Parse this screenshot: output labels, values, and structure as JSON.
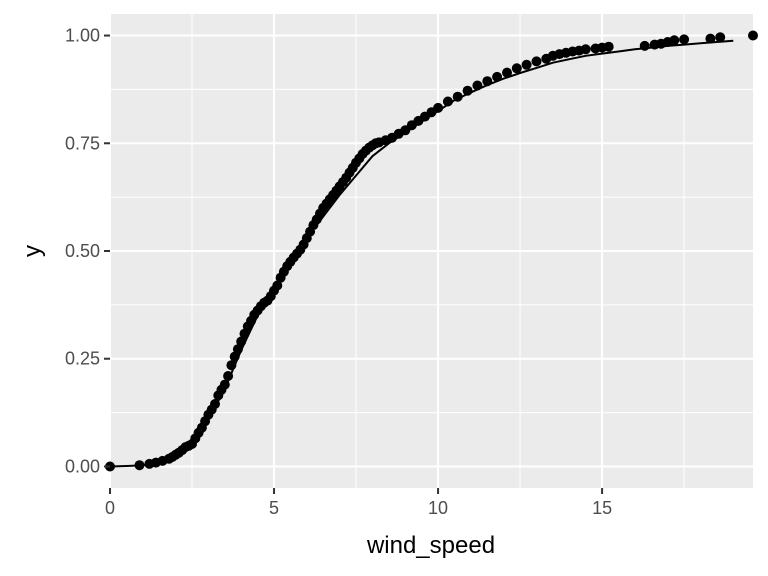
{
  "chart_data": {
    "type": "scatter",
    "xlabel": "wind_speed",
    "ylabel": "y",
    "xlim": [
      0,
      19.6
    ],
    "ylim": [
      -0.05,
      1.05
    ],
    "x_ticks": [
      0,
      5,
      10,
      15
    ],
    "x_tick_labels": [
      "0",
      "5",
      "10",
      "15"
    ],
    "y_ticks": [
      0,
      0.25,
      0.5,
      0.75,
      1.0
    ],
    "y_tick_labels": [
      "0.00",
      "0.25",
      "0.50",
      "0.75",
      "1.00"
    ],
    "grid": true,
    "legend": "none",
    "colors": {
      "panel": "#EBEBEB",
      "grid": "#FFFFFF",
      "points": "#000000",
      "line": "#000000",
      "ticks": "#333333",
      "tick_labels": "#4D4D4D"
    },
    "series": [
      {
        "kind": "points",
        "x": [
          0,
          0.9,
          1.2,
          1.4,
          1.6,
          1.8,
          1.9,
          2.0,
          2.1,
          2.2,
          2.3,
          2.4,
          2.5,
          2.6,
          2.7,
          2.8,
          2.9,
          3.0,
          3.1,
          3.2,
          3.3,
          3.4,
          3.5,
          3.6,
          3.7,
          3.8,
          3.9,
          4.0,
          4.1,
          4.2,
          4.3,
          4.4,
          4.5,
          4.6,
          4.7,
          4.8,
          4.9,
          5.0,
          5.1,
          5.2,
          5.3,
          5.4,
          5.5,
          5.6,
          5.7,
          5.8,
          5.9,
          6.0,
          6.1,
          6.2,
          6.3,
          6.4,
          6.5,
          6.6,
          6.7,
          6.8,
          6.9,
          7.0,
          7.1,
          7.2,
          7.3,
          7.4,
          7.5,
          7.6,
          7.7,
          7.8,
          7.9,
          8.0,
          8.1,
          8.2,
          8.4,
          8.6,
          8.8,
          9.0,
          9.2,
          9.4,
          9.6,
          9.8,
          10.0,
          10.3,
          10.6,
          10.9,
          11.2,
          11.5,
          11.8,
          12.1,
          12.4,
          12.7,
          13.0,
          13.3,
          13.5,
          13.7,
          13.9,
          14.1,
          14.3,
          14.5,
          14.8,
          15.0,
          15.2,
          16.3,
          16.6,
          16.8,
          17.0,
          17.2,
          17.5,
          18.3,
          18.6,
          19.6
        ],
        "y": [
          0,
          0.003,
          0.006,
          0.009,
          0.013,
          0.018,
          0.022,
          0.027,
          0.032,
          0.038,
          0.045,
          0.048,
          0.052,
          0.065,
          0.078,
          0.09,
          0.105,
          0.12,
          0.132,
          0.145,
          0.165,
          0.178,
          0.19,
          0.21,
          0.235,
          0.255,
          0.272,
          0.29,
          0.308,
          0.325,
          0.338,
          0.352,
          0.362,
          0.372,
          0.38,
          0.385,
          0.395,
          0.408,
          0.42,
          0.438,
          0.452,
          0.465,
          0.475,
          0.485,
          0.494,
          0.503,
          0.515,
          0.53,
          0.545,
          0.56,
          0.573,
          0.587,
          0.6,
          0.61,
          0.62,
          0.63,
          0.64,
          0.65,
          0.66,
          0.67,
          0.682,
          0.693,
          0.705,
          0.715,
          0.725,
          0.733,
          0.74,
          0.745,
          0.75,
          0.752,
          0.757,
          0.763,
          0.772,
          0.78,
          0.792,
          0.802,
          0.812,
          0.822,
          0.832,
          0.847,
          0.858,
          0.872,
          0.884,
          0.894,
          0.904,
          0.914,
          0.924,
          0.932,
          0.94,
          0.946,
          0.953,
          0.957,
          0.96,
          0.963,
          0.965,
          0.968,
          0.97,
          0.972,
          0.974,
          0.976,
          0.979,
          0.981,
          0.985,
          0.989,
          0.991,
          0.993,
          0.996,
          1.0
        ]
      },
      {
        "kind": "line",
        "x": [
          0,
          0.5,
          1.0,
          1.5,
          2.0,
          2.5,
          3.0,
          3.5,
          4.0,
          4.5,
          5.0,
          5.5,
          6.0,
          6.5,
          7.0,
          7.5,
          8.0,
          8.5,
          9.0,
          9.5,
          10.0,
          10.5,
          11.0,
          11.5,
          12.0,
          12.5,
          13.0,
          13.5,
          14.0,
          14.5,
          15.0,
          15.5,
          16.0,
          16.5,
          17.0,
          17.5,
          18.0,
          18.5,
          19.0
        ],
        "y": [
          0,
          0.001,
          0.003,
          0.01,
          0.025,
          0.05,
          0.11,
          0.18,
          0.27,
          0.35,
          0.41,
          0.47,
          0.53,
          0.58,
          0.63,
          0.675,
          0.72,
          0.75,
          0.775,
          0.8,
          0.825,
          0.85,
          0.868,
          0.885,
          0.9,
          0.913,
          0.925,
          0.937,
          0.945,
          0.953,
          0.958,
          0.963,
          0.968,
          0.972,
          0.976,
          0.979,
          0.982,
          0.985,
          0.988
        ]
      }
    ]
  }
}
